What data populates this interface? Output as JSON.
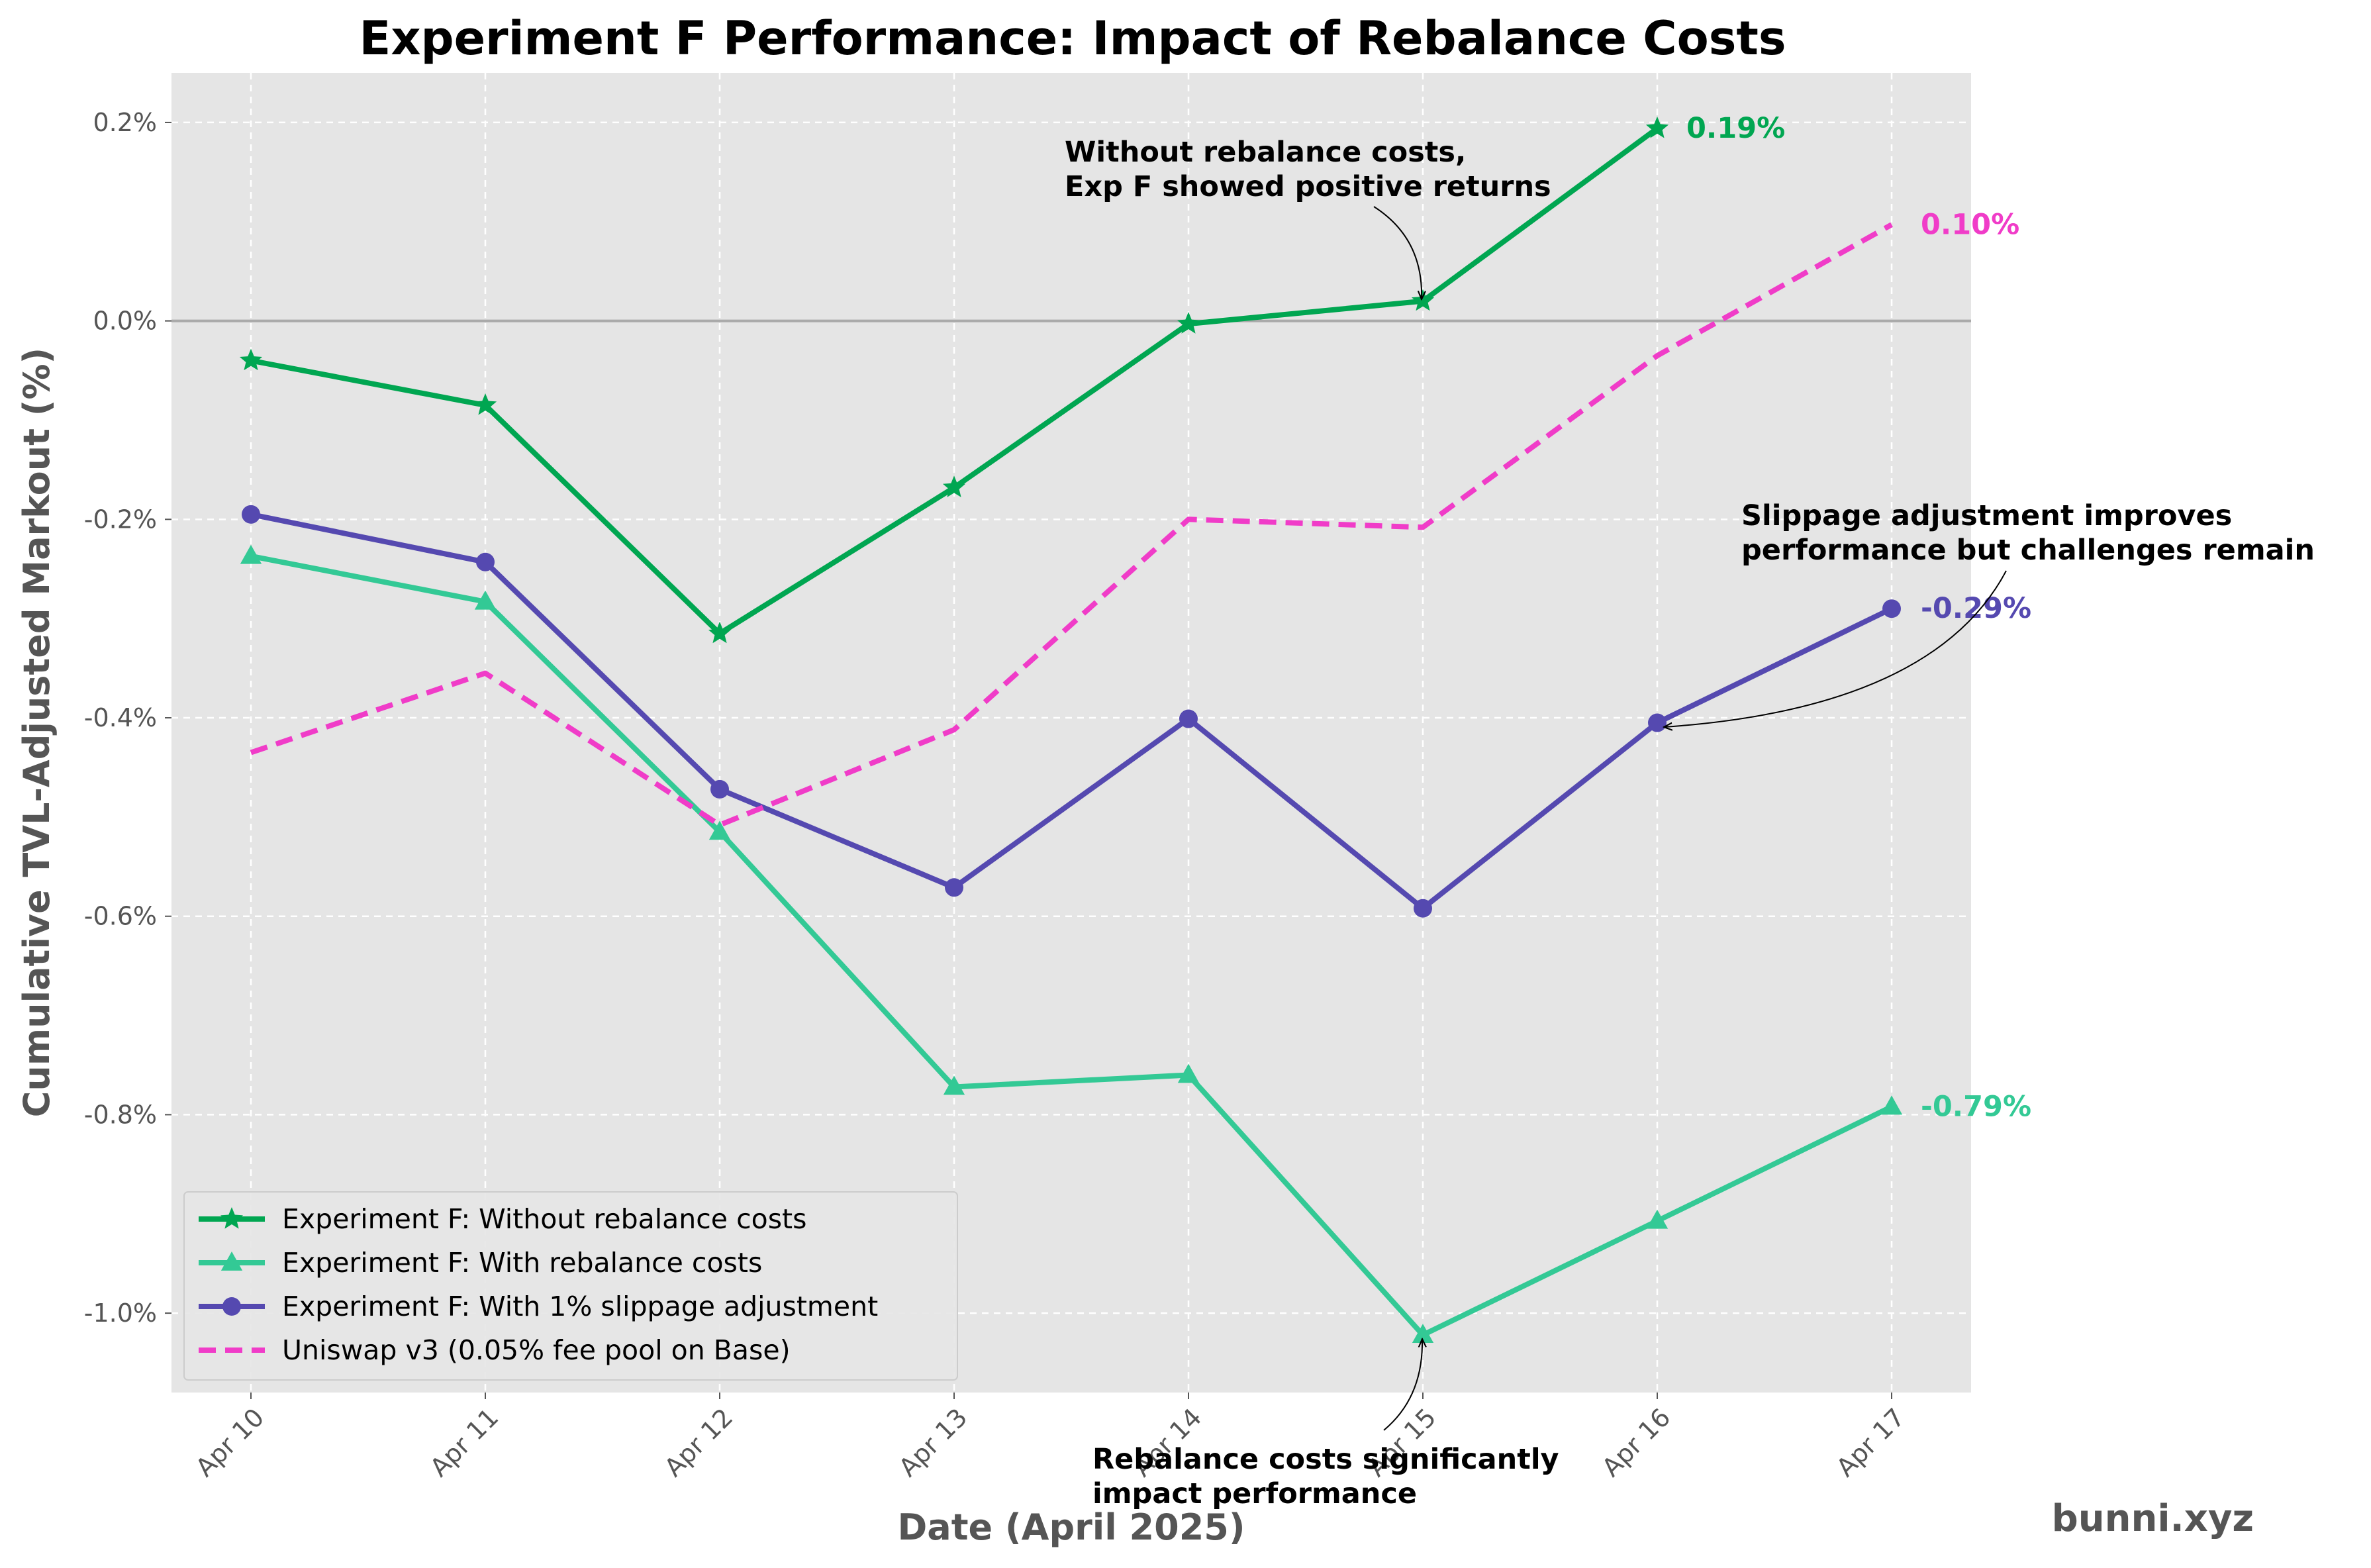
{
  "chart_data": {
    "type": "line",
    "title": "Experiment F Performance: Impact of Rebalance Costs",
    "xlabel": "Date (April 2025)",
    "ylabel": "Cumulative TVL-Adjusted Markout (%)",
    "categories": [
      "Apr 10",
      "Apr 11",
      "Apr 12",
      "Apr 13",
      "Apr 14",
      "Apr 15",
      "Apr 16",
      "Apr 17"
    ],
    "ylim": [
      -1.08,
      0.25
    ],
    "yticks": [
      0.2,
      0.0,
      -0.2,
      -0.4,
      -0.6,
      -0.8,
      -1.0
    ],
    "ytick_labels": [
      "0.2%",
      "0.0%",
      "-0.2%",
      "-0.4%",
      "-0.6%",
      "-0.8%",
      "-1.0%"
    ],
    "grid": true,
    "zero_line": true,
    "legend_position": "lower-left",
    "series": [
      {
        "name": "Experiment F: Without rebalance costs",
        "color": "#00a651",
        "marker": "star",
        "dash": "solid",
        "values": [
          -0.04,
          -0.085,
          -0.315,
          -0.168,
          -0.003,
          0.02,
          0.194,
          null
        ],
        "end_label": "0.19%",
        "end_index": 6
      },
      {
        "name": "Experiment F: With rebalance costs",
        "color": "#33c995",
        "marker": "triangle",
        "dash": "solid",
        "values": [
          -0.237,
          -0.283,
          -0.515,
          -0.772,
          -0.76,
          -1.022,
          -0.907,
          -0.792
        ],
        "end_label": "-0.79%",
        "end_index": 7
      },
      {
        "name": "Experiment F: With 1% slippage adjustment",
        "color": "#5549b0",
        "marker": "circle",
        "dash": "solid",
        "values": [
          -0.195,
          -0.243,
          -0.472,
          -0.571,
          -0.401,
          -0.592,
          -0.405,
          -0.29
        ],
        "end_label": "-0.29%",
        "end_index": 7
      },
      {
        "name": "Uniswap v3 (0.05% fee pool on Base)",
        "color": "#f03cc8",
        "marker": "none",
        "dash": "dashed",
        "values": [
          -0.435,
          -0.355,
          -0.508,
          -0.412,
          -0.2,
          -0.208,
          -0.035,
          0.097
        ],
        "end_label": "0.10%",
        "end_index": 7
      }
    ],
    "annotations": [
      {
        "lines": [
          "Without rebalance costs,",
          "Exp F showed positive returns"
        ],
        "target_series": 0,
        "target_index": 5
      },
      {
        "lines": [
          "Slippage adjustment improves",
          "performance but challenges remain"
        ],
        "target_series": 2,
        "target_index": 6
      },
      {
        "lines": [
          "Rebalance costs significantly",
          "impact performance"
        ],
        "target_series": 1,
        "target_index": 5
      }
    ],
    "watermark": "bunni.xyz"
  }
}
